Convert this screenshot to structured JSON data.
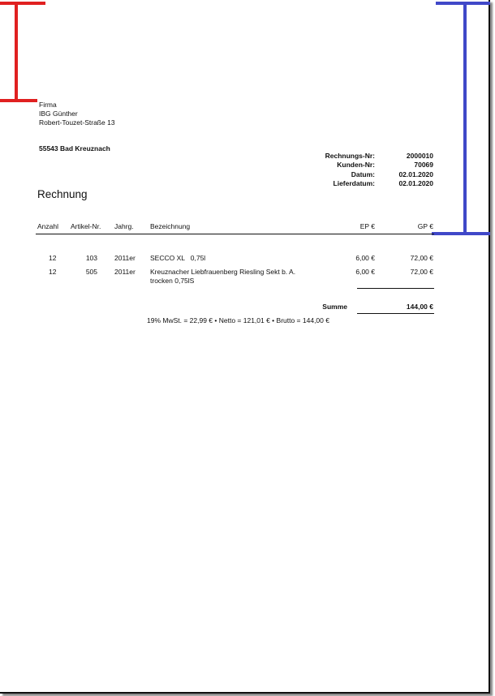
{
  "sender": {
    "line1": "Firma",
    "line2": "IBG Günther",
    "line3": "Robert-Touzet-Straße 13",
    "city": "55543 Bad Kreuznach"
  },
  "meta": [
    {
      "label": "Rechnungs-Nr:",
      "value": "2000010"
    },
    {
      "label": "Kunden-Nr:",
      "value": "70069"
    },
    {
      "label": "Datum:",
      "value": "02.01.2020"
    },
    {
      "label": "Lieferdatum:",
      "value": "02.01.2020"
    }
  ],
  "title": "Rechnung",
  "table": {
    "headers": [
      "Anzahl",
      "Artikel-Nr.",
      "Jahrg.",
      "Bezeichnung",
      "EP €",
      "GP €"
    ],
    "rows": [
      {
        "qty": "12",
        "art": "103",
        "year": "2011er",
        "desc": "SECCO XL   0,75l",
        "desc2": "",
        "ep": "6,00 €",
        "gp": "72,00 €"
      },
      {
        "qty": "12",
        "art": "505",
        "year": "2011er",
        "desc": "Kreuznacher Liebfrauenberg Riesling Sekt b. A.",
        "desc2": "trocken 0,75lS",
        "ep": "6,00 €",
        "gp": "72,00 €"
      }
    ]
  },
  "summe_label": "Summe",
  "summe_value": "144,00 €",
  "tax_line": "19% MwSt. = 22,99 € • Netto = 121,01 € • Brutto = 144,00 €",
  "colors": {
    "left_marker": "#e02020",
    "right_marker": "#4048c8"
  }
}
